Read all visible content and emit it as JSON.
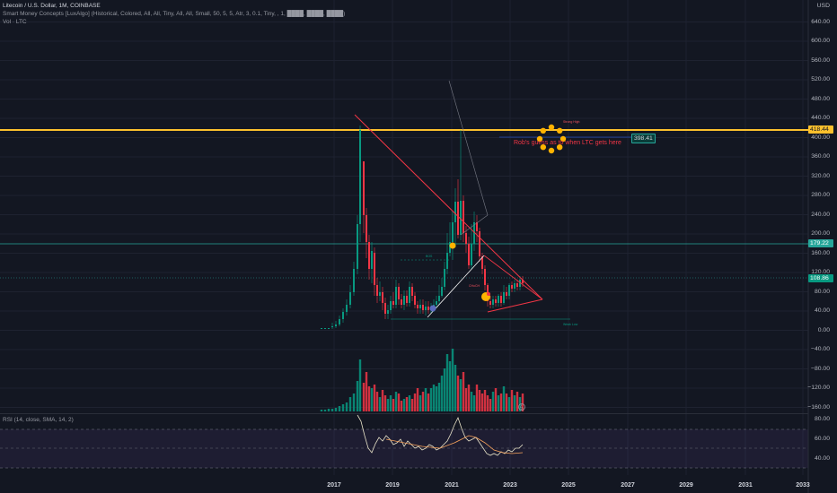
{
  "header": {
    "symbol_line": "Litecoin / U.S. Dollar, 1M, COINBASE",
    "indicator_line": "Smart Money Concepts [LuxAlgo] (Historical, Colored, All, All, Tiny, All, All, Small, 50, 5, 5, Atr, 3, 0.1, Tiny, , 1, ████, ████, ████)",
    "volume_line": "Vol · LTC"
  },
  "price_axis": {
    "currency": "USD",
    "ticks": [
      "640.00",
      "600.00",
      "560.00",
      "520.00",
      "480.00",
      "440.00",
      "400.00",
      "360.00",
      "320.00",
      "280.00",
      "240.00",
      "200.00",
      "160.00",
      "120.00",
      "80.00",
      "40.00",
      "0.00",
      "−40.00",
      "−80.00",
      "−120.00",
      "−160.00"
    ]
  },
  "price_tags": {
    "yellow_line": "418.44",
    "target": "398.41",
    "resistance": "179.22",
    "current": "108.86"
  },
  "annotation": {
    "text": "Rob's guess as to when LTC gets here"
  },
  "tiny_labels": {
    "strong_high": "Strong High",
    "weak_low": "Weak Low",
    "bos": "BOS",
    "choch": "CHoCH"
  },
  "rsi": {
    "legend": "RSI (14, close, SMA, 14, 2)",
    "ticks": [
      "80.00",
      "60.00",
      "40.00"
    ]
  },
  "time_axis": {
    "ticks": [
      "2017",
      "2019",
      "2021",
      "2023",
      "2025",
      "2027",
      "2029",
      "2031",
      "2033"
    ]
  },
  "colors": {
    "background": "#131722",
    "bull": "#089981",
    "bear": "#f23645",
    "yellow_line": "#fbc02d",
    "teal_line": "#26a69a",
    "trend_red": "#f23645",
    "rsi_line": "#e9e4c9",
    "rsi_ma": "#f7a35c",
    "rsi_band": "#7e57c2"
  },
  "icons": [
    "emoji-rocket-icon",
    "emoji-hand-icon",
    "lightning-icon"
  ]
}
